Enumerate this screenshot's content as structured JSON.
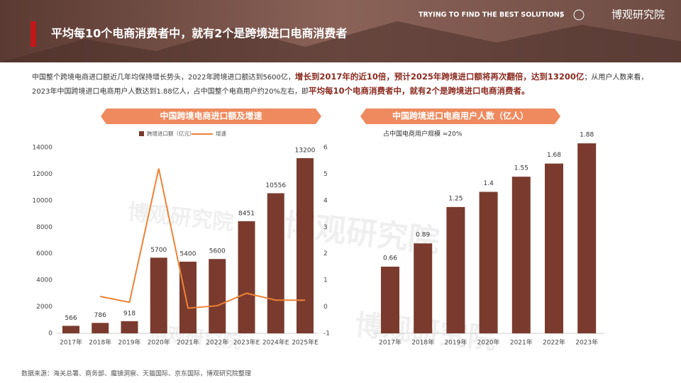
{
  "header": {
    "tagline": "TRYING TO FIND THE BEST SOLUTIONS",
    "separator": "/",
    "logo": "博观研究院",
    "title": "平均每10个电商消费者中，就有2个是跨境进口电商消费者"
  },
  "intro": [
    {
      "text": "中国整个跨境电商进口额近几年均保持增长势头，2022年跨境进口额达到5600亿，",
      "bold": false
    },
    {
      "text": "增长到2017年的近10倍，预计2025年跨境进口额将再次翻倍，达到13200亿",
      "bold": true
    },
    {
      "text": "；从用户人数来看，2023年中国跨境进口电商用户人数达到1.88亿人，占中国整个电商用户约20%左右，即",
      "bold": false
    },
    {
      "text": "平均每10个电商消费者中，就有2个是跨境进口电商消费者。",
      "bold": true
    }
  ],
  "watermark": "博观研究院",
  "chart_data": [
    {
      "type": "bar_line",
      "title": "中国跨境电商进口额及增速",
      "categories": [
        "2017年",
        "2018年",
        "2019年",
        "2020年",
        "2021年",
        "2022年",
        "2023年E",
        "2024年E",
        "2025年E"
      ],
      "series": [
        {
          "name": "跨境进口额（亿元）",
          "color": "#7a3b2e",
          "values": [
            566,
            786,
            918,
            5700,
            5400,
            5600,
            8451,
            10556,
            13200
          ]
        },
        {
          "name": "增速",
          "color": "#ee8236",
          "axis": "y2",
          "values": [
            null,
            0.39,
            0.17,
            5.21,
            -0.05,
            0.04,
            0.51,
            0.25,
            0.25
          ]
        }
      ],
      "ylim": [
        0,
        14000
      ],
      "yticks": [
        0,
        2000,
        4000,
        6000,
        8000,
        10000,
        12000,
        14000
      ],
      "y2lim": [
        -1,
        6
      ],
      "y2ticks": [
        -1,
        0,
        1,
        2,
        3,
        4,
        5,
        6
      ]
    },
    {
      "type": "bar",
      "title": "中国跨境进口电商用户人数（亿人）",
      "annotation": "占中国电商用户规模 ≈20%",
      "categories": [
        "2017年",
        "2018年",
        "2019年",
        "2020年",
        "2021年",
        "2022年",
        "2023年"
      ],
      "values": [
        0.66,
        0.89,
        1.25,
        1.4,
        1.55,
        1.68,
        1.88
      ],
      "color": "#7a3b2e",
      "ylim": [
        0,
        2
      ]
    }
  ],
  "source": "数据来源：海关总署、商务部、魔镜洞察、天猫国际、京东国际，博观研究院整理"
}
